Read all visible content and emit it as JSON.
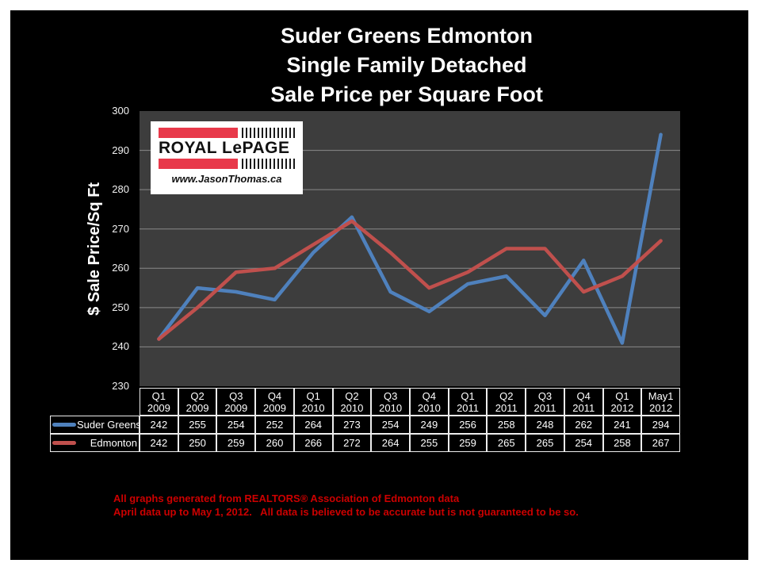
{
  "title": {
    "line1": "Suder Greens Edmonton",
    "line2": "Single Family Detached",
    "line3": "Sale Price per Square Foot"
  },
  "logo": {
    "brand": "ROYAL LePAGE",
    "url": "www.JasonThomas.ca"
  },
  "footer": {
    "line1": "All graphs generated from REALTORS® Association of Edmonton data",
    "line2": "April data up to May 1, 2012.   All data is believed to be accurate but is not guaranteed to be so."
  },
  "colors": {
    "background": "#ffffff",
    "canvas": "#000000",
    "plot_bg": "#3d3d3d",
    "gridline": "#8a8a8a",
    "suder_greens": "#4f81bd",
    "edmonton": "#c0504d",
    "table_border": "#ededed",
    "footer_red": "#cc0000",
    "logo_red": "#e8394a"
  },
  "chart_data": {
    "type": "line",
    "title": "Suder Greens Edmonton Single Family Detached Sale Price per Square Foot",
    "xlabel": "",
    "ylabel": "$ Sale Price/Sq Ft",
    "ylim": [
      230,
      300
    ],
    "ystep": 10,
    "yticks": [
      300,
      290,
      280,
      270,
      260,
      250,
      240,
      230
    ],
    "grid": "horizontal",
    "legend_position": "table-left",
    "categories": [
      "Q1 2009",
      "Q2 2009",
      "Q3 2009",
      "Q4 2009",
      "Q1 2010",
      "Q2 2010",
      "Q3 2010",
      "Q4 2010",
      "Q1 2011",
      "Q2 2011",
      "Q3 2011",
      "Q4 2011",
      "Q1 2012",
      "May1 2012"
    ],
    "series": [
      {
        "name": "Suder Greens",
        "color": "#4f81bd",
        "values": [
          242,
          255,
          254,
          252,
          264,
          273,
          254,
          249,
          256,
          258,
          248,
          262,
          241,
          294
        ]
      },
      {
        "name": "Edmonton",
        "color": "#c0504d",
        "values": [
          242,
          250,
          259,
          260,
          266,
          272,
          264,
          255,
          259,
          265,
          265,
          254,
          258,
          267
        ]
      }
    ]
  }
}
